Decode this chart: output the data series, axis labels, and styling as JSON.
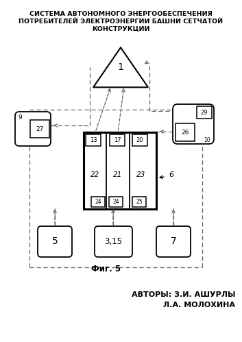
{
  "title_line1": "СИСТЕМА АВТОНОМНОГО ЭНЕРГООБЕСПЕЧЕНИЯ",
  "title_line2": "ПОТРЕБИТЕЛЕЙ ЭЛЕКТРОЭНЕРГИИ БАШНИ СЕТЧАТОЙ",
  "title_line3": "КОНСТРУКЦИИ",
  "fig_label": "Фиг. 5",
  "authors_line1": "АВТОРЫ: З.И. АШУРЛЫ",
  "authors_line2": "Л.А. МОЛОХИНА",
  "bg_color": "#ffffff",
  "line_color": "#000000",
  "dashed_color": "#666666"
}
